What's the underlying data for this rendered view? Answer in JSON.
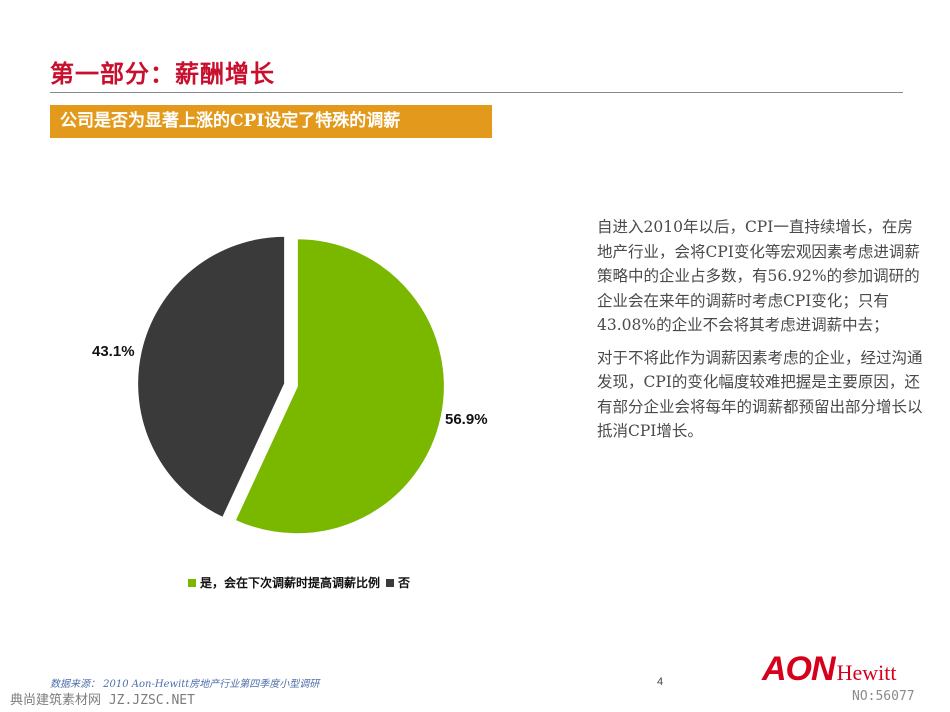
{
  "title": "第一部分：薪酬增长",
  "banner": "公司是否为显著上涨的CPI设定了特殊的调薪",
  "chart_data": {
    "type": "pie",
    "slices": [
      {
        "name": "是，会在下次调薪时提高调薪比例",
        "value": 56.9,
        "label": "56.9%",
        "color": "#7ab800"
      },
      {
        "name": "否",
        "value": 43.1,
        "label": "43.1%",
        "color": "#3a3a3a"
      }
    ],
    "legend_position": "bottom",
    "start_angle": "12 o'clock, clockwise",
    "exploded": true
  },
  "legend": [
    {
      "label": "是，会在下次调薪时提高调薪比例",
      "color": "#7ab800"
    },
    {
      "label": "否",
      "color": "#3a3a3a"
    }
  ],
  "commentary": {
    "p1": "自进入2010年以后，CPI一直持续增长，在房地产行业，会将CPI变化等宏观因素考虑进调薪策略中的企业占多数，有56.92%的参加调研的企业会在来年的调薪时考虑CPI变化；只有43.08%的企业不会将其考虑进调薪中去；",
    "p2": "对于不将此作为调薪因素考虑的企业，经过沟通发现，CPI的变化幅度较难把握是主要原因，还有部分企业会将每年的调薪都预留出部分增长以抵消CPI增长。"
  },
  "footer": {
    "source": "数据来源： 2010 Aon-Hewitt房地产行业第四季度小型调研",
    "page_number": "4",
    "logo_aon": "AON",
    "logo_hewitt": "Hewitt"
  },
  "watermark": {
    "left": "典尚建筑素材网 JZ.JZSC.NET",
    "right": "NO:56077"
  }
}
